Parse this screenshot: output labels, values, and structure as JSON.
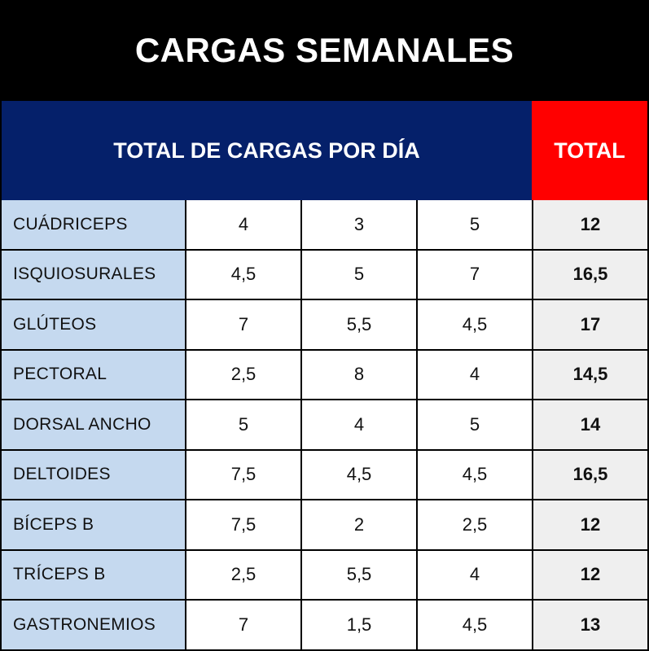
{
  "title": "CARGAS SEMANALES",
  "header": {
    "days_label": "TOTAL DE CARGAS POR DÍA",
    "total_label": "TOTAL"
  },
  "colors": {
    "title_bg": "#000000",
    "days_header_bg": "#05206a",
    "total_header_bg": "#ff0000",
    "name_cell_bg": "#c5d9ef",
    "total_cell_bg": "#efefef"
  },
  "rows": [
    {
      "name": "CUÁDRICEPS",
      "d1": "4",
      "d2": "3",
      "d3": "5",
      "total": "12"
    },
    {
      "name": "ISQUIOSURALES",
      "d1": "4,5",
      "d2": "5",
      "d3": "7",
      "total": "16,5"
    },
    {
      "name": "GLÚTEOS",
      "d1": "7",
      "d2": "5,5",
      "d3": "4,5",
      "total": "17"
    },
    {
      "name": "PECTORAL",
      "d1": "2,5",
      "d2": "8",
      "d3": "4",
      "total": "14,5"
    },
    {
      "name": "DORSAL ANCHO",
      "d1": "5",
      "d2": "4",
      "d3": "5",
      "total": "14"
    },
    {
      "name": "DELTOIDES",
      "d1": "7,5",
      "d2": "4,5",
      "d3": "4,5",
      "total": "16,5"
    },
    {
      "name": "BÍCEPS B",
      "d1": "7,5",
      "d2": "2",
      "d3": "2,5",
      "total": "12"
    },
    {
      "name": "TRÍCEPS B",
      "d1": "2,5",
      "d2": "5,5",
      "d3": "4",
      "total": "12"
    },
    {
      "name": "GASTRONEMIOS",
      "d1": "7",
      "d2": "1,5",
      "d3": "4,5",
      "total": "13"
    }
  ]
}
